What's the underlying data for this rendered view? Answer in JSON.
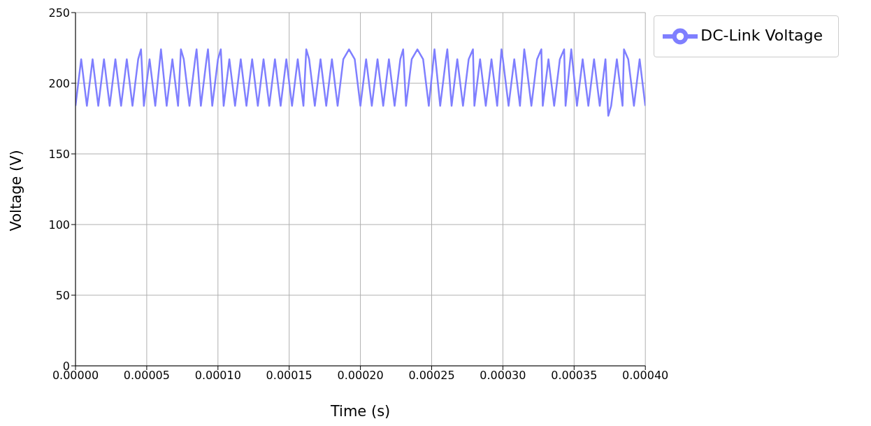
{
  "chart_data": {
    "type": "line",
    "xlabel": "Time (s)",
    "ylabel": "Voltage (V)",
    "x": [
      0,
      4e-06,
      8e-06,
      1.2e-05,
      1.6e-05,
      2e-05,
      2.4e-05,
      2.8e-05,
      3.2e-05,
      3.6e-05,
      4e-05,
      4.4e-05,
      4.6e-05,
      4.8e-05,
      5.2e-05,
      5.6e-05,
      6e-05,
      6.4e-05,
      6.8e-05,
      7.2e-05,
      7.4e-05,
      7.6e-05,
      8e-05,
      8.4e-05,
      8.5e-05,
      8.8e-05,
      9.2e-05,
      9.3e-05,
      9.6e-05,
      0.0001,
      0.000102,
      0.000104,
      0.000108,
      0.000112,
      0.000116,
      0.00012,
      0.000124,
      0.000128,
      0.000132,
      0.000136,
      0.00014,
      0.000144,
      0.000148,
      0.000152,
      0.000156,
      0.00016,
      0.000162,
      0.000164,
      0.000168,
      0.000172,
      0.000176,
      0.00018,
      0.000184,
      0.000188,
      0.000192,
      0.000196,
      0.0002,
      0.000204,
      0.000208,
      0.000212,
      0.000216,
      0.00022,
      0.000224,
      0.000228,
      0.00023,
      0.000232,
      0.000236,
      0.00024,
      0.000244,
      0.000248,
      0.000252,
      0.000256,
      0.00026,
      0.000261,
      0.000264,
      0.000268,
      0.000272,
      0.000276,
      0.000279,
      0.00028,
      0.000284,
      0.000288,
      0.000292,
      0.000296,
      0.000299,
      0.0003,
      0.000304,
      0.000308,
      0.000312,
      0.000315,
      0.000316,
      0.00032,
      0.000324,
      0.000327,
      0.000328,
      0.000332,
      0.000336,
      0.00034,
      0.000343,
      0.000344,
      0.000348,
      0.000352,
      0.000356,
      0.00036,
      0.000364,
      0.000368,
      0.000372,
      0.000374,
      0.000376,
      0.00038,
      0.000384,
      0.000385,
      0.000388,
      0.000392,
      0.000396,
      0.0004
    ],
    "series": [
      {
        "name": "DC-Link Voltage",
        "color": "#7f7fff",
        "values": [
          184,
          217,
          184,
          217,
          184,
          217,
          184,
          217,
          184,
          217,
          184,
          217,
          224,
          184,
          217,
          184,
          224,
          184,
          217,
          184,
          224,
          217,
          184,
          217,
          224,
          184,
          217,
          224,
          184,
          217,
          224,
          184,
          217,
          184,
          217,
          184,
          217,
          184,
          217,
          184,
          217,
          184,
          217,
          184,
          217,
          184,
          224,
          217,
          184,
          217,
          184,
          217,
          184,
          217,
          224,
          217,
          184,
          217,
          184,
          217,
          184,
          217,
          184,
          217,
          224,
          184,
          217,
          224,
          217,
          184,
          224,
          184,
          217,
          224,
          184,
          217,
          184,
          217,
          224,
          184,
          217,
          184,
          217,
          184,
          224,
          217,
          184,
          217,
          184,
          224,
          217,
          184,
          217,
          224,
          184,
          217,
          184,
          217,
          224,
          184,
          224,
          184,
          217,
          184,
          217,
          184,
          217,
          177,
          184,
          217,
          184,
          224,
          217,
          184,
          217,
          184
        ]
      }
    ],
    "xlim": [
      0,
      0.0004
    ],
    "xticks": [
      {
        "value": 0,
        "label": "0.00000"
      },
      {
        "value": 5e-05,
        "label": "0.00005"
      },
      {
        "value": 0.0001,
        "label": "0.00010"
      },
      {
        "value": 0.00015,
        "label": "0.00015"
      },
      {
        "value": 0.0002,
        "label": "0.00020"
      },
      {
        "value": 0.00025,
        "label": "0.00025"
      },
      {
        "value": 0.0003,
        "label": "0.00030"
      },
      {
        "value": 0.00035,
        "label": "0.00035"
      },
      {
        "value": 0.0004,
        "label": "0.00040"
      }
    ],
    "ylim": [
      0,
      250
    ],
    "yticks": [
      0,
      50,
      100,
      150,
      200,
      250
    ],
    "grid": true,
    "legend": "top right",
    "marker": "none",
    "line_style": "solid"
  }
}
